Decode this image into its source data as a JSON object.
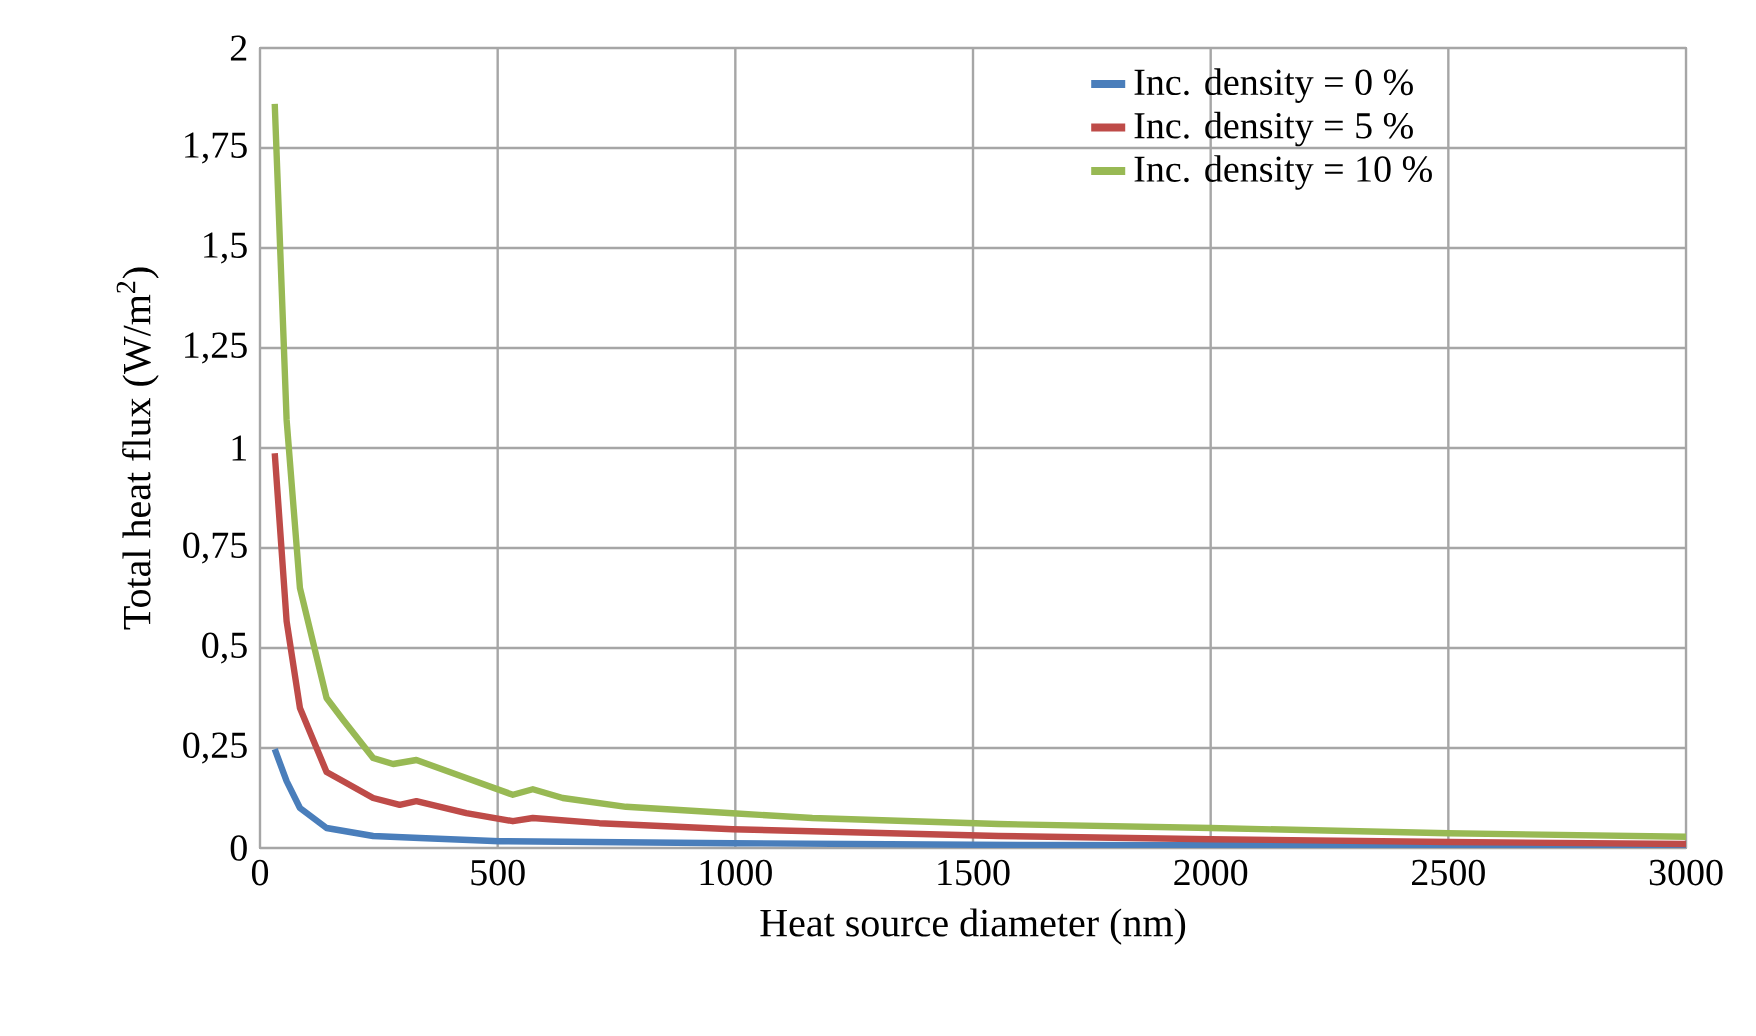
{
  "chart_data": {
    "type": "line",
    "xlabel": "Heat source diameter (nm)",
    "ylabel": "Total heat flux (W/m$^{2}$)",
    "xlim": [
      0,
      3000
    ],
    "xticks": [
      0,
      500,
      1000,
      1500,
      2000,
      2500,
      3000
    ],
    "ylim": [
      0,
      2
    ],
    "yticks": [
      0,
      {
        "value": 0.25,
        "label": "0,25"
      },
      {
        "value": 0.5,
        "label": "0,5"
      },
      {
        "value": 0.75,
        "label": "0,75"
      },
      1,
      {
        "value": 1.25,
        "label": "1,25"
      },
      {
        "value": 1.5,
        "label": "1,5"
      },
      {
        "value": 1.75,
        "label": "1,75"
      },
      2
    ],
    "grid": true,
    "legend": "top right",
    "marker": "none",
    "line_style": "solid",
    "series": [
      {
        "name": "Inc. density = 0 %",
        "color": "#4a7ebb",
        "x": [
          31,
          56,
          84,
          140,
          238,
          336,
          504,
          994,
          1500,
          2000,
          2500,
          3000
        ],
        "values": [
          0.247,
          0.167,
          0.1,
          0.05,
          0.03,
          0.025,
          0.017,
          0.012,
          0.008,
          0.007,
          0.006,
          0.005
        ]
      },
      {
        "name": "Inc. density = 5 %",
        "color": "#be4b48",
        "x": [
          31,
          56,
          84,
          140,
          175,
          238,
          294,
          329,
          434,
          532,
          574,
          714,
          994,
          1554,
          2000,
          2500,
          3000
        ],
        "values": [
          0.987,
          0.567,
          0.35,
          0.19,
          0.167,
          0.125,
          0.108,
          0.117,
          0.087,
          0.067,
          0.075,
          0.062,
          0.047,
          0.03,
          0.022,
          0.015,
          0.01
        ]
      },
      {
        "name": "Inc. density = 10 %",
        "color": "#98b954",
        "x": [
          31,
          56,
          84,
          140,
          175,
          238,
          280,
          329,
          434,
          532,
          574,
          637,
          770,
          994,
          1162,
          1554,
          2000,
          2500,
          3000
        ],
        "values": [
          1.86,
          1.07,
          0.65,
          0.375,
          0.32,
          0.225,
          0.21,
          0.22,
          0.175,
          0.133,
          0.147,
          0.125,
          0.103,
          0.087,
          0.075,
          0.06,
          0.05,
          0.037,
          0.028
        ]
      }
    ]
  }
}
